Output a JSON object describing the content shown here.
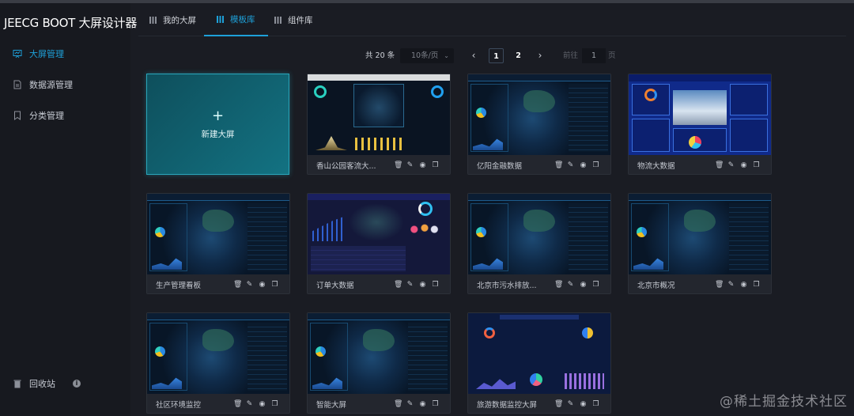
{
  "app": {
    "title": "JEECG BOOT 大屏设计器"
  },
  "sidebar": {
    "items": [
      {
        "label": "大屏管理",
        "icon": "presentation-icon",
        "active": true
      },
      {
        "label": "数据源管理",
        "icon": "file-icon"
      },
      {
        "label": "分类管理",
        "icon": "bookmark-icon"
      }
    ],
    "recycle": {
      "label": "回收站",
      "icon": "trash-icon",
      "info_icon": "info-icon"
    }
  },
  "tabs": [
    {
      "label": "我的大屏",
      "active": false
    },
    {
      "label": "模板库",
      "active": true
    },
    {
      "label": "组件库",
      "active": false
    }
  ],
  "pagination": {
    "total": "共 20 条",
    "page_size": "10条/页",
    "pages": [
      "1",
      "2"
    ],
    "current": "1",
    "goto_label": "前往",
    "goto_value": "1",
    "goto_suffix": "页"
  },
  "new_card": {
    "plus": "+",
    "label": "新建大屏"
  },
  "cards": [
    {
      "name": "香山公园客流大...",
      "theme": "park"
    },
    {
      "name": "亿阳金融数据",
      "theme": "jeecg"
    },
    {
      "name": "物流大数据",
      "theme": "logi"
    },
    {
      "name": "生产管理看板",
      "theme": "jeecg"
    },
    {
      "name": "订单大数据",
      "theme": "order"
    },
    {
      "name": "北京市污水排放...",
      "theme": "jeecg"
    },
    {
      "name": "北京市概况",
      "theme": "jeecg"
    },
    {
      "name": "社区环境监控",
      "theme": "jeecg"
    },
    {
      "name": "智能大屏",
      "theme": "jeecg"
    },
    {
      "name": "旅游数据监控大屏",
      "theme": "travel"
    }
  ],
  "card_actions": [
    "delete-icon",
    "edit-icon",
    "preview-icon",
    "copy-icon"
  ],
  "watermark": "@稀土掘金技术社区",
  "colors": {
    "accent": "#1ea0d8",
    "new_card": "#137282"
  }
}
